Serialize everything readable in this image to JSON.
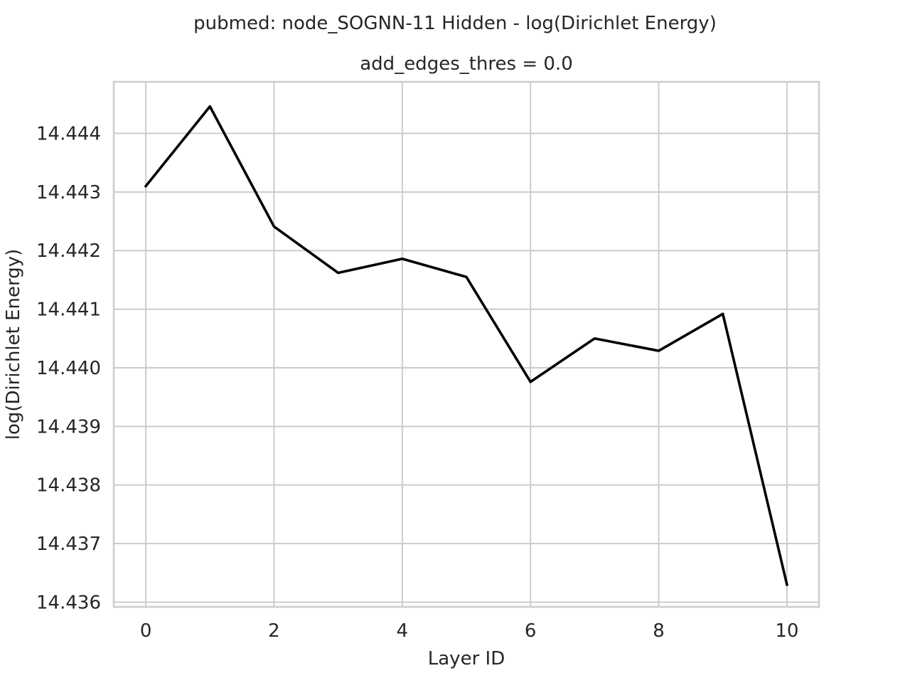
{
  "chart_data": {
    "type": "line",
    "suptitle": "pubmed: node_SOGNN-11 Hidden - log(Dirichlet Energy)",
    "title": "add_edges_thres = 0.0",
    "xlabel": "Layer ID",
    "ylabel": "log(Dirichlet Energy)",
    "xlim": [
      -0.5,
      10.5
    ],
    "ylim": [
      14.43592,
      14.44488
    ],
    "xticks": [
      0,
      2,
      4,
      6,
      8,
      10
    ],
    "xtick_labels": [
      "0",
      "2",
      "4",
      "6",
      "8",
      "10"
    ],
    "yticks": [
      14.436,
      14.437,
      14.438,
      14.439,
      14.44,
      14.441,
      14.442,
      14.443,
      14.444
    ],
    "ytick_labels": [
      "14.436",
      "14.437",
      "14.438",
      "14.439",
      "14.440",
      "14.441",
      "14.442",
      "14.443",
      "14.444"
    ],
    "grid": true,
    "series": [
      {
        "color": "#000000",
        "x": [
          0,
          1,
          2,
          3,
          4,
          5,
          6,
          7,
          8,
          9,
          10
        ],
        "values": [
          14.4431,
          14.44446,
          14.44241,
          14.44162,
          14.44186,
          14.44155,
          14.43976,
          14.4405,
          14.44029,
          14.44092,
          14.4363
        ]
      }
    ]
  }
}
